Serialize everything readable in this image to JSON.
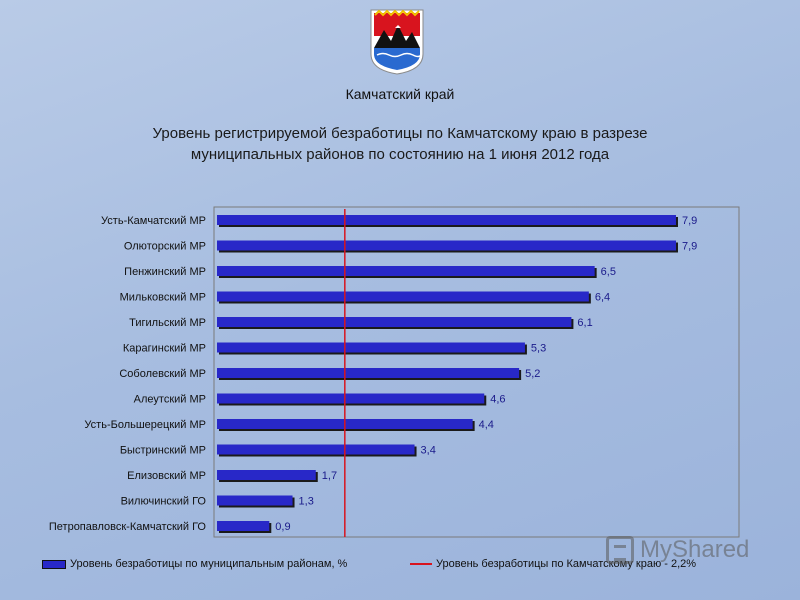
{
  "header": {
    "region": "Камчатский край",
    "title_line1": "Уровень регистрируемой безработицы по Камчатскому краю в разрезе",
    "title_line2": "муниципальных районов по состоянию на 1 июня 2012 года"
  },
  "chart_data": {
    "type": "bar",
    "orientation": "horizontal",
    "categories": [
      "Усть-Камчатский МР",
      "Олюторский МР",
      "Пенжинский МР",
      "Мильковский МР",
      "Тигильский МР",
      "Карагинский МР",
      "Соболевский МР",
      "Алеутский МР",
      "Усть-Большерецкий МР",
      "Быстринский МР",
      "Елизовский МР",
      "Вилючинский ГО",
      "Петропавловск-Камчатский ГО"
    ],
    "series": [
      {
        "name": "Уровень безработицы по муниципальным районам, %",
        "values": [
          7.9,
          7.9,
          6.5,
          6.4,
          6.1,
          5.3,
          5.2,
          4.6,
          4.4,
          3.4,
          1.7,
          1.3,
          0.9
        ],
        "labels": [
          "7,9",
          "7,9",
          "6,5",
          "6,4",
          "6,1",
          "5,3",
          "5,2",
          "4,6",
          "4,4",
          "3,4",
          "1,7",
          "1,3",
          "0,9"
        ],
        "color": "#2828c8"
      }
    ],
    "reference_line": {
      "name": "Уровень безработицы по Камчатскому краю - 2,2%",
      "value": 2.2,
      "color": "#d8141e"
    },
    "xlim": [
      0,
      8.6
    ],
    "legend_position": "bottom",
    "grid": false
  },
  "watermark": "MyShared"
}
